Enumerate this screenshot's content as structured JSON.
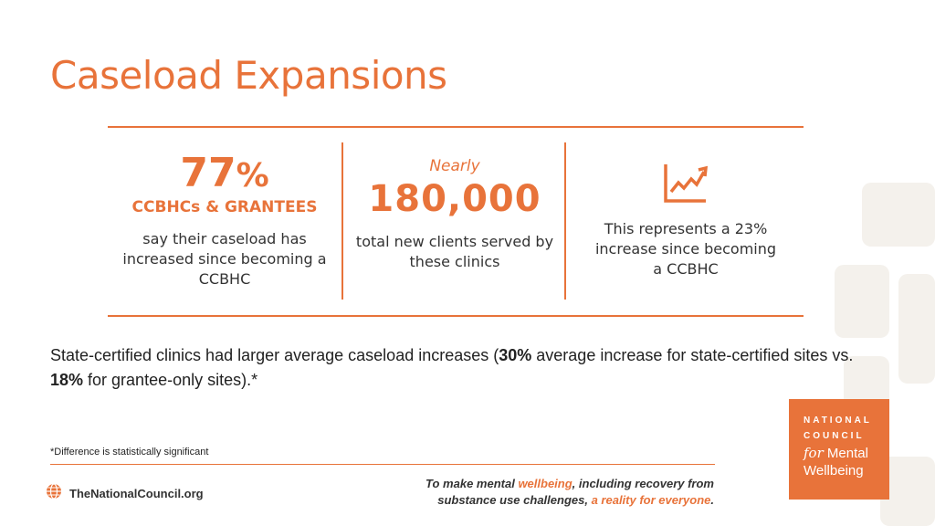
{
  "slide": {
    "title": "Caseload Expansions",
    "stats": [
      {
        "value": "77",
        "value_suffix": "%",
        "subtitle": "CCBHCs & GRANTEES",
        "description": [
          "say their caseload has",
          "increased since becoming a",
          "CCBHC"
        ]
      },
      {
        "prefix": "Nearly",
        "value": "180,000",
        "description": [
          "total new clients served by",
          "these clinics"
        ]
      },
      {
        "icon": "trend-up-chart-icon",
        "description": [
          "This represents a 23%",
          "increase since becoming",
          "a CCBHC"
        ]
      }
    ],
    "body": {
      "part1": "State-certified clinics had larger average caseload increases (",
      "bold1": "30%",
      "part2": " average increase for state-certified sites vs. ",
      "bold2": "18%",
      "part3": " for grantee-only sites).*"
    },
    "footnote": "*Difference is statistically significant",
    "footer": {
      "site": "TheNationalCouncil.org",
      "tagline_1": "To make mental ",
      "tagline_hl1": "wellbeing",
      "tagline_2": ", including recovery from",
      "tagline_3": "substance use challenges, ",
      "tagline_hl2": "a reality for everyone",
      "tagline_4": "."
    },
    "logo": {
      "line1": "NATIONAL",
      "line2": "COUNCIL",
      "line3_italic": "for",
      "line3": " Mental",
      "line4": "Wellbeing"
    },
    "colors": {
      "accent": "#e8733a",
      "text": "#222222"
    }
  }
}
